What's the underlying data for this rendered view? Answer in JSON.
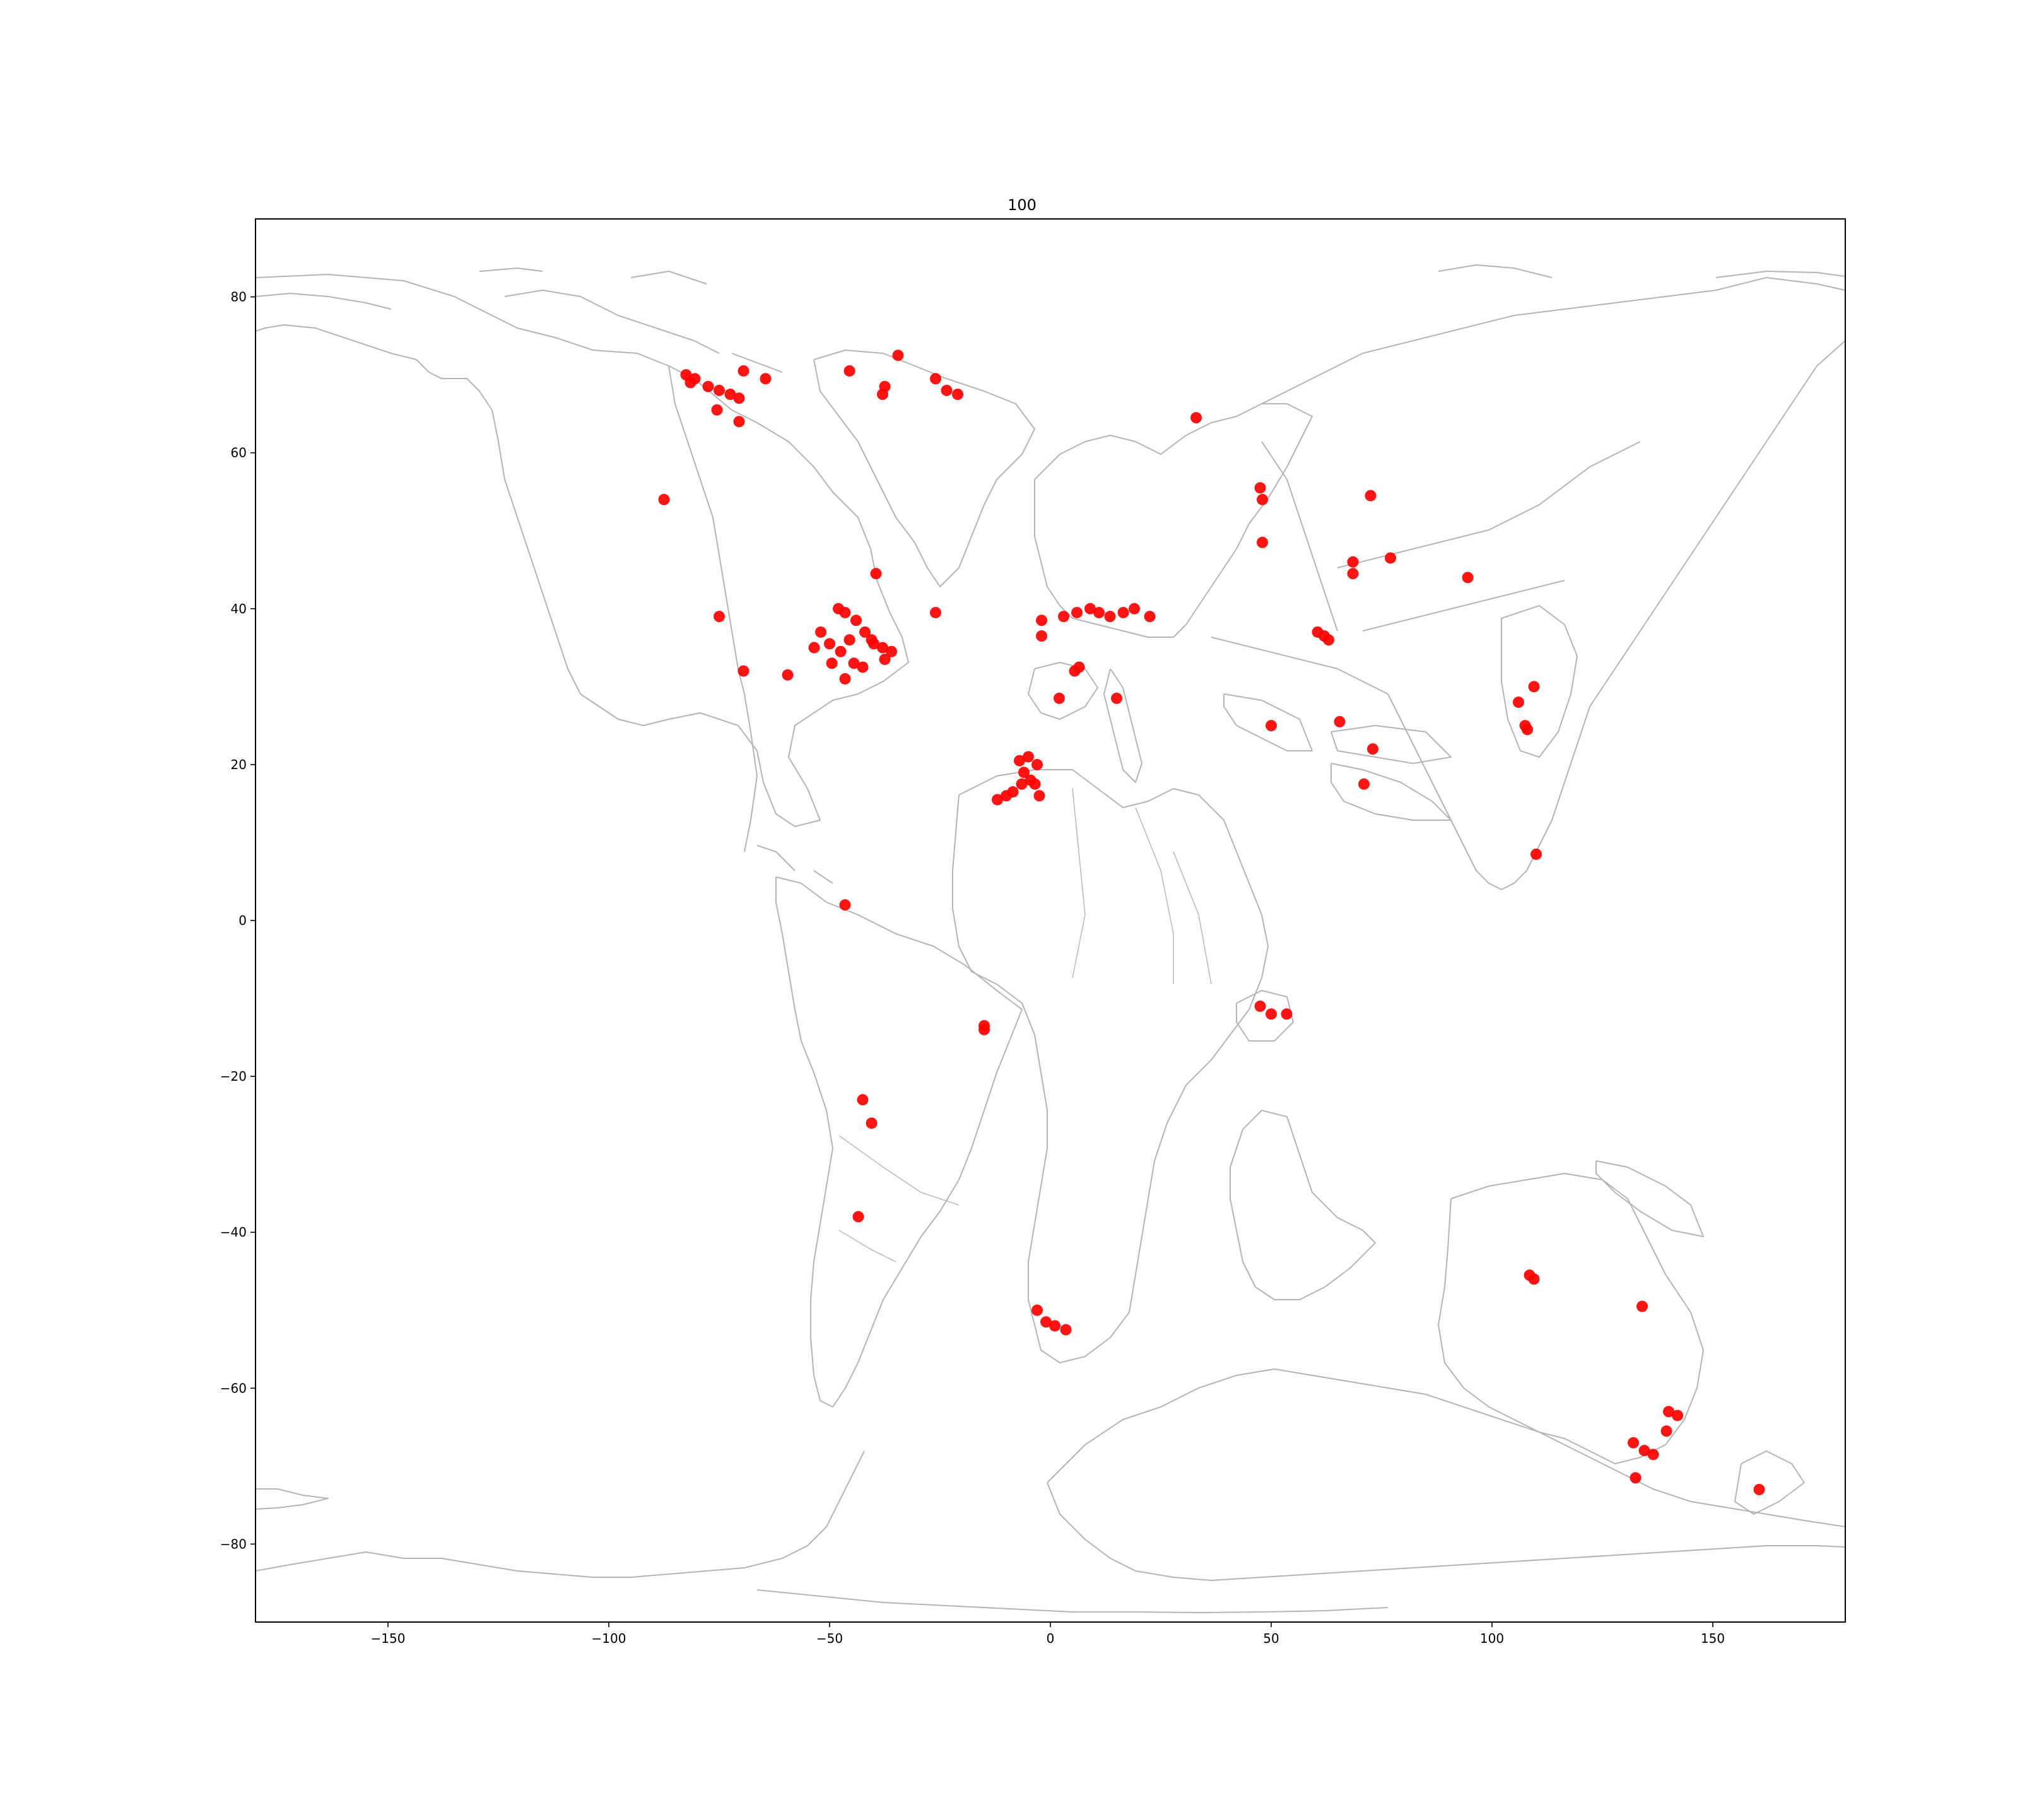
{
  "chart_data": {
    "type": "scatter",
    "title": "100",
    "xlim": [
      -180,
      180
    ],
    "ylim": [
      -90,
      90
    ],
    "xticks": [
      -150,
      -100,
      -50,
      0,
      50,
      100,
      150
    ],
    "yticks": [
      -80,
      -60,
      -40,
      -20,
      0,
      20,
      40,
      60,
      80
    ],
    "grid": false,
    "marker_color": "#ff0000",
    "coastline_color": "#b4b4b4",
    "points": [
      [
        -82.5,
        70.0
      ],
      [
        -81.5,
        69.0
      ],
      [
        -80.5,
        69.5
      ],
      [
        -77.5,
        68.5
      ],
      [
        -75.0,
        68.0
      ],
      [
        -72.5,
        67.5
      ],
      [
        -70.5,
        67.0
      ],
      [
        -69.5,
        70.5
      ],
      [
        -75.5,
        65.5
      ],
      [
        -70.5,
        64.0
      ],
      [
        -64.5,
        69.5
      ],
      [
        -45.5,
        70.5
      ],
      [
        -37.5,
        68.5
      ],
      [
        -38.0,
        67.5
      ],
      [
        -34.5,
        72.5
      ],
      [
        -26.0,
        69.5
      ],
      [
        -23.5,
        68.0
      ],
      [
        -21.0,
        67.5
      ],
      [
        -87.5,
        54.0
      ],
      [
        -75.0,
        39.0
      ],
      [
        -69.5,
        32.0
      ],
      [
        -59.5,
        31.5
      ],
      [
        -39.5,
        44.5
      ],
      [
        -26.0,
        39.5
      ],
      [
        -48.0,
        40.0
      ],
      [
        -46.5,
        39.5
      ],
      [
        -44.0,
        38.5
      ],
      [
        -42.0,
        37.0
      ],
      [
        -40.0,
        35.5
      ],
      [
        -38.0,
        35.0
      ],
      [
        -36.0,
        34.5
      ],
      [
        -52.0,
        37.0
      ],
      [
        -53.5,
        35.0
      ],
      [
        -50.0,
        35.5
      ],
      [
        -47.5,
        34.5
      ],
      [
        -45.5,
        36.0
      ],
      [
        -44.5,
        33.0
      ],
      [
        -42.5,
        32.5
      ],
      [
        -46.5,
        31.0
      ],
      [
        -49.5,
        33.0
      ],
      [
        -37.5,
        33.5
      ],
      [
        -40.5,
        36.0
      ],
      [
        33.0,
        64.5
      ],
      [
        47.5,
        55.5
      ],
      [
        48.0,
        54.0
      ],
      [
        48.0,
        48.5
      ],
      [
        72.5,
        54.5
      ],
      [
        77.0,
        46.5
      ],
      [
        68.5,
        46.0
      ],
      [
        68.5,
        44.5
      ],
      [
        94.5,
        44.0
      ],
      [
        -2.0,
        38.5
      ],
      [
        -2.0,
        36.5
      ],
      [
        3.0,
        39.0
      ],
      [
        6.0,
        39.5
      ],
      [
        9.0,
        40.0
      ],
      [
        11.0,
        39.5
      ],
      [
        13.5,
        39.0
      ],
      [
        16.5,
        39.5
      ],
      [
        19.0,
        40.0
      ],
      [
        22.5,
        39.0
      ],
      [
        5.5,
        32.0
      ],
      [
        6.5,
        32.5
      ],
      [
        2.0,
        28.5
      ],
      [
        15.0,
        28.5
      ],
      [
        60.5,
        37.0
      ],
      [
        62.0,
        36.5
      ],
      [
        63.0,
        36.0
      ],
      [
        50.0,
        25.0
      ],
      [
        65.5,
        25.5
      ],
      [
        73.0,
        22.0
      ],
      [
        71.0,
        17.5
      ],
      [
        106.0,
        28.0
      ],
      [
        109.5,
        30.0
      ],
      [
        107.5,
        25.0
      ],
      [
        108.0,
        24.5
      ],
      [
        110.0,
        8.5
      ],
      [
        -7.0,
        20.5
      ],
      [
        -5.0,
        21.0
      ],
      [
        -3.0,
        20.0
      ],
      [
        -6.0,
        19.0
      ],
      [
        -4.5,
        18.0
      ],
      [
        -6.5,
        17.5
      ],
      [
        -3.5,
        17.5
      ],
      [
        -2.5,
        16.0
      ],
      [
        -8.5,
        16.5
      ],
      [
        -10.0,
        16.0
      ],
      [
        -12.0,
        15.5
      ],
      [
        -46.5,
        2.0
      ],
      [
        -15.0,
        -13.5
      ],
      [
        -15.0,
        -14.0
      ],
      [
        -42.5,
        -23.0
      ],
      [
        -40.5,
        -26.0
      ],
      [
        -43.5,
        -38.0
      ],
      [
        -3.0,
        -50.0
      ],
      [
        -1.0,
        -51.5
      ],
      [
        1.0,
        -52.0
      ],
      [
        3.5,
        -52.5
      ],
      [
        47.5,
        -11.0
      ],
      [
        50.0,
        -12.0
      ],
      [
        53.5,
        -12.0
      ],
      [
        108.5,
        -45.5
      ],
      [
        109.5,
        -46.0
      ],
      [
        134.0,
        -49.5
      ],
      [
        140.0,
        -63.0
      ],
      [
        142.0,
        -63.5
      ],
      [
        139.5,
        -65.5
      ],
      [
        132.0,
        -67.0
      ],
      [
        134.5,
        -68.0
      ],
      [
        136.5,
        -68.5
      ],
      [
        132.5,
        -71.5
      ],
      [
        160.5,
        -73.0
      ]
    ]
  }
}
